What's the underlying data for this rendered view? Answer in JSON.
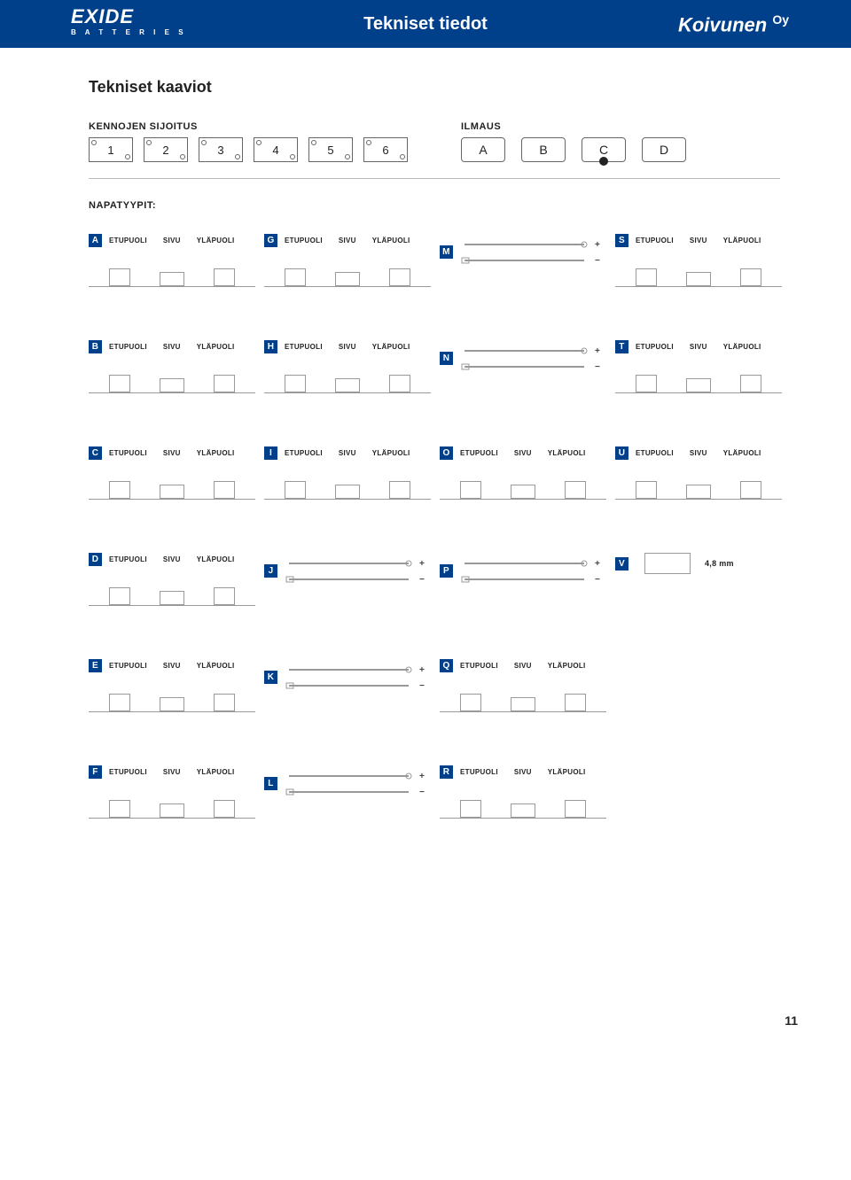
{
  "header": {
    "logo_brand": "EXIDE",
    "logo_sub": "B A T T E R I E S",
    "title": "Tekniset tiedot",
    "right_logo": "Koivunen",
    "right_logo_suffix": "Oy"
  },
  "section_title": "Tekniset kaaviot",
  "kennot": {
    "heading": "KENNOJEN SIJOITUS",
    "items": [
      "1",
      "2",
      "3",
      "4",
      "5",
      "6"
    ]
  },
  "ilmaus": {
    "heading": "ILMAUS",
    "items": [
      "A",
      "B",
      "C",
      "D"
    ],
    "knob_on": [
      false,
      false,
      true,
      false
    ]
  },
  "napatyypit_heading": "NAPATYYPIT:",
  "col_labels": {
    "front": "ETUPUOLI",
    "side": "SIVU",
    "top": "YLÄPUOLI"
  },
  "terminals": [
    {
      "id": "A",
      "type": "3view"
    },
    {
      "id": "G",
      "type": "3view"
    },
    {
      "id": "M",
      "type": "wires"
    },
    {
      "id": "S",
      "type": "3view"
    },
    {
      "id": "B",
      "type": "3view"
    },
    {
      "id": "H",
      "type": "3view"
    },
    {
      "id": "N",
      "type": "wires"
    },
    {
      "id": "T",
      "type": "3view"
    },
    {
      "id": "C",
      "type": "3view"
    },
    {
      "id": "I",
      "type": "3view"
    },
    {
      "id": "O",
      "type": "3view"
    },
    {
      "id": "U",
      "type": "3view"
    },
    {
      "id": "D",
      "type": "3view"
    },
    {
      "id": "J",
      "type": "wires"
    },
    {
      "id": "P",
      "type": "wires"
    },
    {
      "id": "V",
      "type": "note",
      "note": "4,8 mm"
    },
    {
      "id": "E",
      "type": "3view"
    },
    {
      "id": "K",
      "type": "wires"
    },
    {
      "id": "Q",
      "type": "3view"
    },
    {
      "id": "",
      "type": "blank"
    },
    {
      "id": "F",
      "type": "3view"
    },
    {
      "id": "L",
      "type": "wires"
    },
    {
      "id": "R",
      "type": "3view"
    },
    {
      "id": "",
      "type": "blank"
    }
  ],
  "page_number": "11",
  "colors": {
    "brand_blue": "#003f8a",
    "line": "#999999"
  }
}
